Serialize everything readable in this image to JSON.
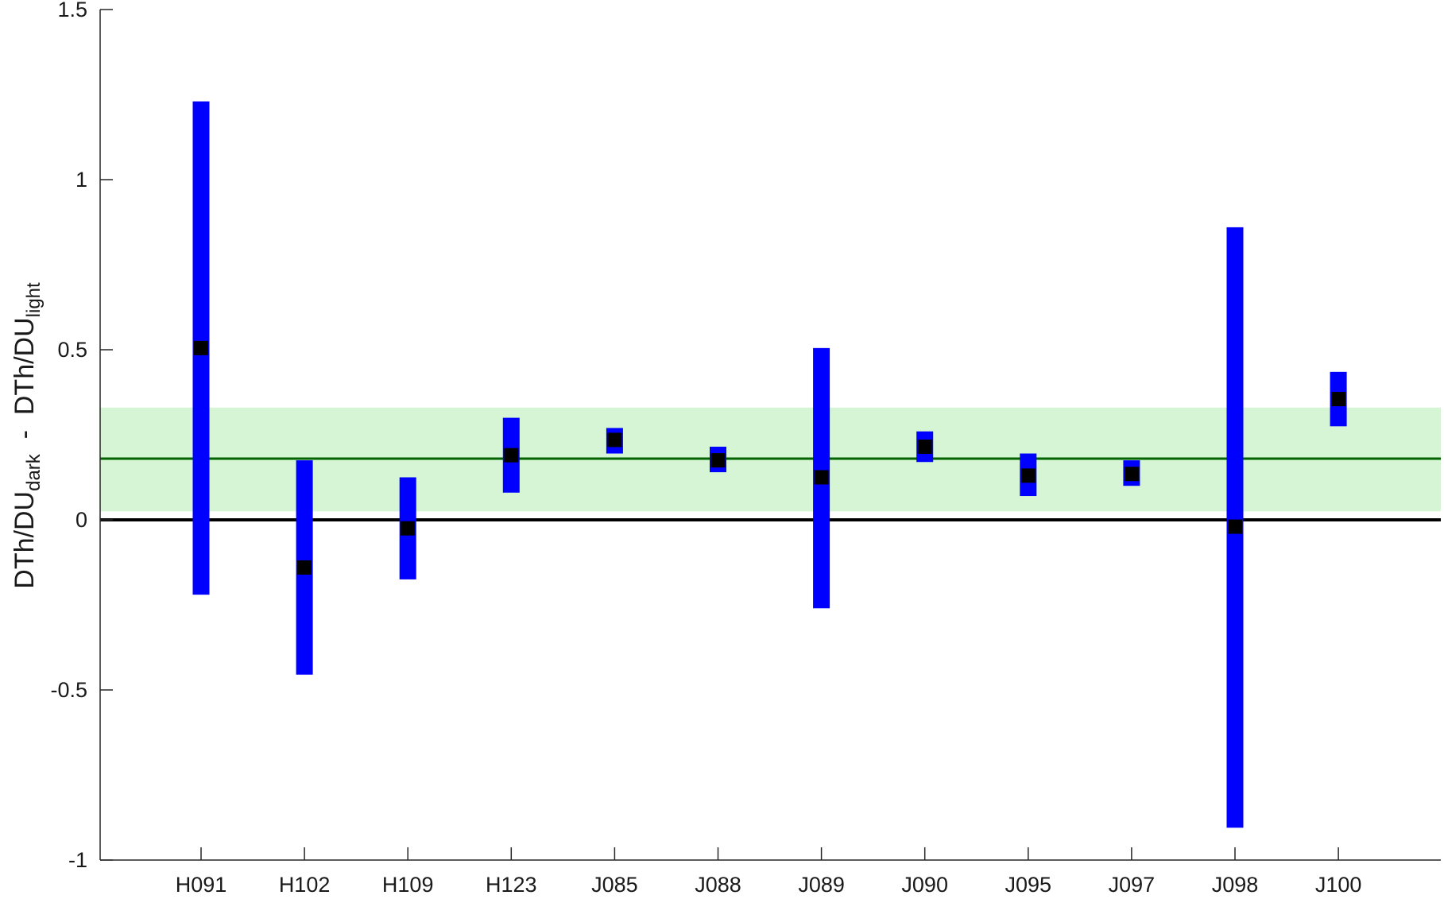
{
  "chart_data": {
    "type": "range",
    "categories": [
      "H091",
      "H102",
      "H109",
      "H123",
      "J085",
      "J088",
      "J089",
      "J090",
      "J095",
      "J097",
      "J098",
      "J100"
    ],
    "series": [
      {
        "low": [
          -0.22,
          -0.455,
          -0.175,
          0.08,
          0.195,
          0.14,
          -0.26,
          0.17,
          0.07,
          0.1,
          -0.905,
          0.275
        ],
        "high": [
          1.23,
          0.175,
          0.125,
          0.3,
          0.27,
          0.215,
          0.505,
          0.26,
          0.195,
          0.175,
          0.86,
          0.435
        ],
        "point": [
          0.505,
          -0.14,
          -0.025,
          0.19,
          0.235,
          0.175,
          0.125,
          0.215,
          0.13,
          0.135,
          -0.02,
          0.355
        ],
        "color": "#0000ff",
        "point_color": "#000000"
      }
    ],
    "reference": {
      "mean": 0.18,
      "band_low": 0.025,
      "band_high": 0.33,
      "band_color": "#d5f5d5",
      "mean_color": "#006400",
      "zero_line_color": "#000000"
    },
    "ylim": [
      -1,
      1.5
    ],
    "yticks": [
      -1,
      -0.5,
      0,
      0.5,
      1,
      1.5
    ],
    "ytick_labels": [
      "-1",
      "-0.5",
      "0",
      "0.5",
      "1",
      "1.5"
    ],
    "ylabel": {
      "p1": "DTh/DU",
      "sub1": "dark",
      "sep": "  -  ",
      "p2": "DTh/DU",
      "sub2": "light"
    },
    "xlabel": "",
    "title": "",
    "grid": false,
    "legend": "none"
  }
}
